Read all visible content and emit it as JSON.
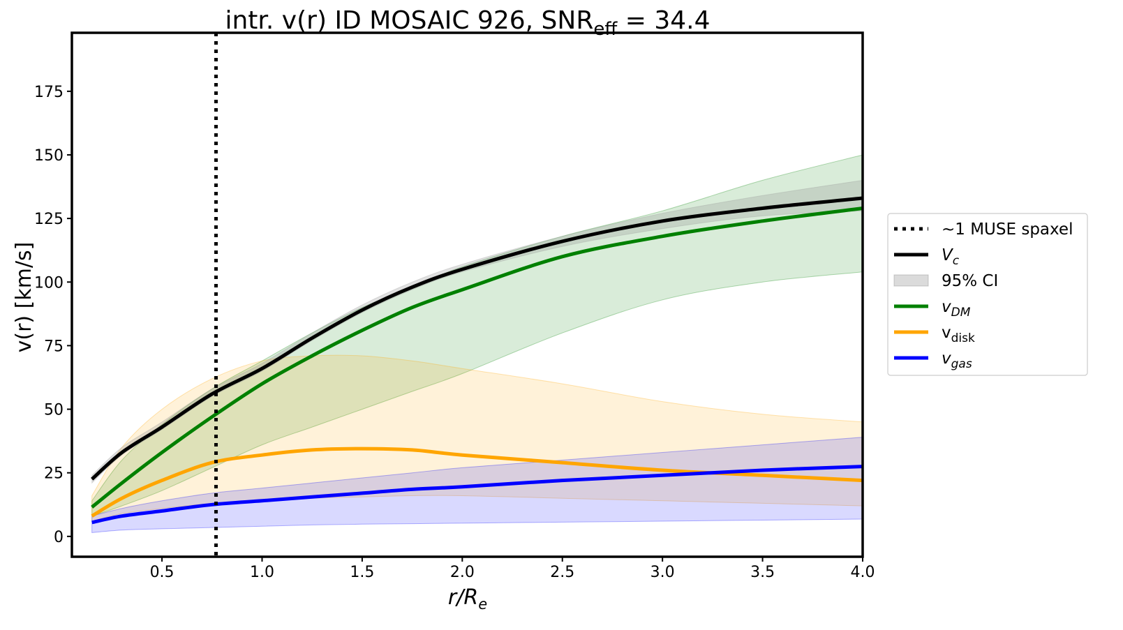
{
  "chart_data": {
    "type": "line",
    "title": {
      "text": "intr. v(r) ID MOSAIC 926, SNR",
      "subscript": "eff",
      "suffix": " = 34.4"
    },
    "xlabel": {
      "main": "r/R",
      "subscript": "e"
    },
    "ylabel": "v(r) [km/s]",
    "xlim": [
      0.05,
      4.0
    ],
    "ylim": [
      -8,
      198
    ],
    "xticks": [
      "0.5",
      "1.0",
      "1.5",
      "2.0",
      "2.5",
      "3.0",
      "3.5",
      "4.0"
    ],
    "yticks": [
      "0",
      "25",
      "50",
      "75",
      "100",
      "125",
      "150",
      "175"
    ],
    "grid": false,
    "legend_placement": "outside right",
    "vline": {
      "x": 0.77,
      "label": "~1 MUSE spaxel",
      "color": "#000000"
    },
    "x": [
      0.15,
      0.3,
      0.5,
      0.75,
      1.0,
      1.25,
      1.5,
      1.75,
      2.0,
      2.5,
      3.0,
      3.5,
      4.0
    ],
    "series": [
      {
        "key": "vc",
        "name": "V",
        "subscript": "c",
        "italic": true,
        "color": "#000000",
        "values": [
          22.5,
          33,
          43,
          56,
          66,
          78,
          89,
          98,
          105,
          116,
          124,
          129,
          133
        ],
        "band": {
          "lower": [
            21,
            32,
            42,
            55,
            65,
            77,
            88,
            97,
            104,
            114,
            121,
            126,
            128
          ],
          "upper": [
            24,
            35,
            45,
            58,
            68,
            80,
            91,
            100,
            107,
            118,
            127,
            134,
            140
          ],
          "color": "#999999"
        }
      },
      {
        "key": "vdm",
        "name": "v",
        "subscript": "DM",
        "italic": true,
        "color": "#008000",
        "values": [
          11.5,
          21,
          33,
          47,
          60,
          71,
          81,
          90,
          97,
          110,
          118,
          124,
          129
        ],
        "band": {
          "lower": [
            8,
            12,
            18,
            27,
            36,
            43,
            50,
            57,
            64,
            80,
            93,
            100,
            104
          ],
          "upper": [
            14,
            30,
            44,
            58,
            69,
            80,
            90,
            98,
            106,
            118,
            128,
            140,
            150
          ],
          "color": "#008000"
        }
      },
      {
        "key": "vdisk",
        "name": "v",
        "subscript": "disk",
        "italic": false,
        "color": "#ffa500",
        "values": [
          8,
          15,
          22,
          29,
          32,
          34,
          34.5,
          34,
          32,
          29,
          26,
          24,
          22
        ],
        "band": {
          "lower": [
            6,
            9,
            11,
            13,
            14,
            15,
            15.5,
            16,
            16,
            15,
            14,
            13,
            12
          ],
          "upper": [
            16,
            35,
            50,
            62,
            69,
            71,
            71,
            69,
            66,
            60,
            53,
            48,
            45
          ],
          "color": "#ffa500"
        }
      },
      {
        "key": "vgas",
        "name": "v",
        "subscript": "gas",
        "italic": true,
        "color": "#0000ff",
        "values": [
          5.5,
          8,
          10,
          12.5,
          14,
          15.5,
          17,
          18.5,
          19.5,
          22,
          24,
          26,
          27.5
        ],
        "band": {
          "lower": [
            1.5,
            2.5,
            3,
            3.5,
            4,
            4.5,
            4.8,
            5,
            5.2,
            5.6,
            6,
            6.4,
            6.8
          ],
          "upper": [
            8,
            11,
            14,
            17,
            19,
            21,
            23,
            25,
            27,
            30,
            33,
            36,
            39
          ],
          "color": "#0000ff"
        }
      }
    ],
    "legend": [
      {
        "key": "vline",
        "label": "~1 MUSE spaxel"
      },
      {
        "key": "vc",
        "label": "V",
        "subscript": "c",
        "italic": true
      },
      {
        "key": "ci",
        "label": "95% CI"
      },
      {
        "key": "vdm",
        "label": "v",
        "subscript": "DM",
        "italic": true
      },
      {
        "key": "vdisk",
        "label": "v",
        "subscript": "disk",
        "italic": false
      },
      {
        "key": "vgas",
        "label": "v",
        "subscript": "gas",
        "italic": true
      }
    ]
  }
}
